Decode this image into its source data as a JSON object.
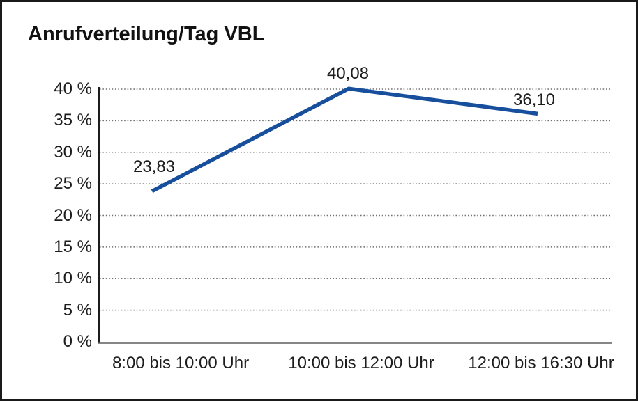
{
  "chart": {
    "title": "Anrufverteilung/Tag VBL"
  },
  "chart_data": {
    "type": "line",
    "title": "Anrufverteilung/Tag VBL",
    "categories": [
      "8:00 bis 10:00 Uhr",
      "10:00 bis 12:00 Uhr",
      "12:00 bis 16:30 Uhr"
    ],
    "series": [
      {
        "values": [
          23.83,
          40.08,
          36.1
        ],
        "color": "#174f9c"
      }
    ],
    "point_labels": [
      "23,83",
      "40,08",
      "36,10"
    ],
    "xlabel": "",
    "ylabel": "",
    "ylim": [
      0,
      40
    ],
    "y_tick_step": 5,
    "y_tick_suffix": " %",
    "grid": "horizontal-dotted",
    "gridline_color": "#6e6e6e",
    "axis_color": "#1c1c1c",
    "baseline_color": "#5f5f5f",
    "legend": "none"
  }
}
